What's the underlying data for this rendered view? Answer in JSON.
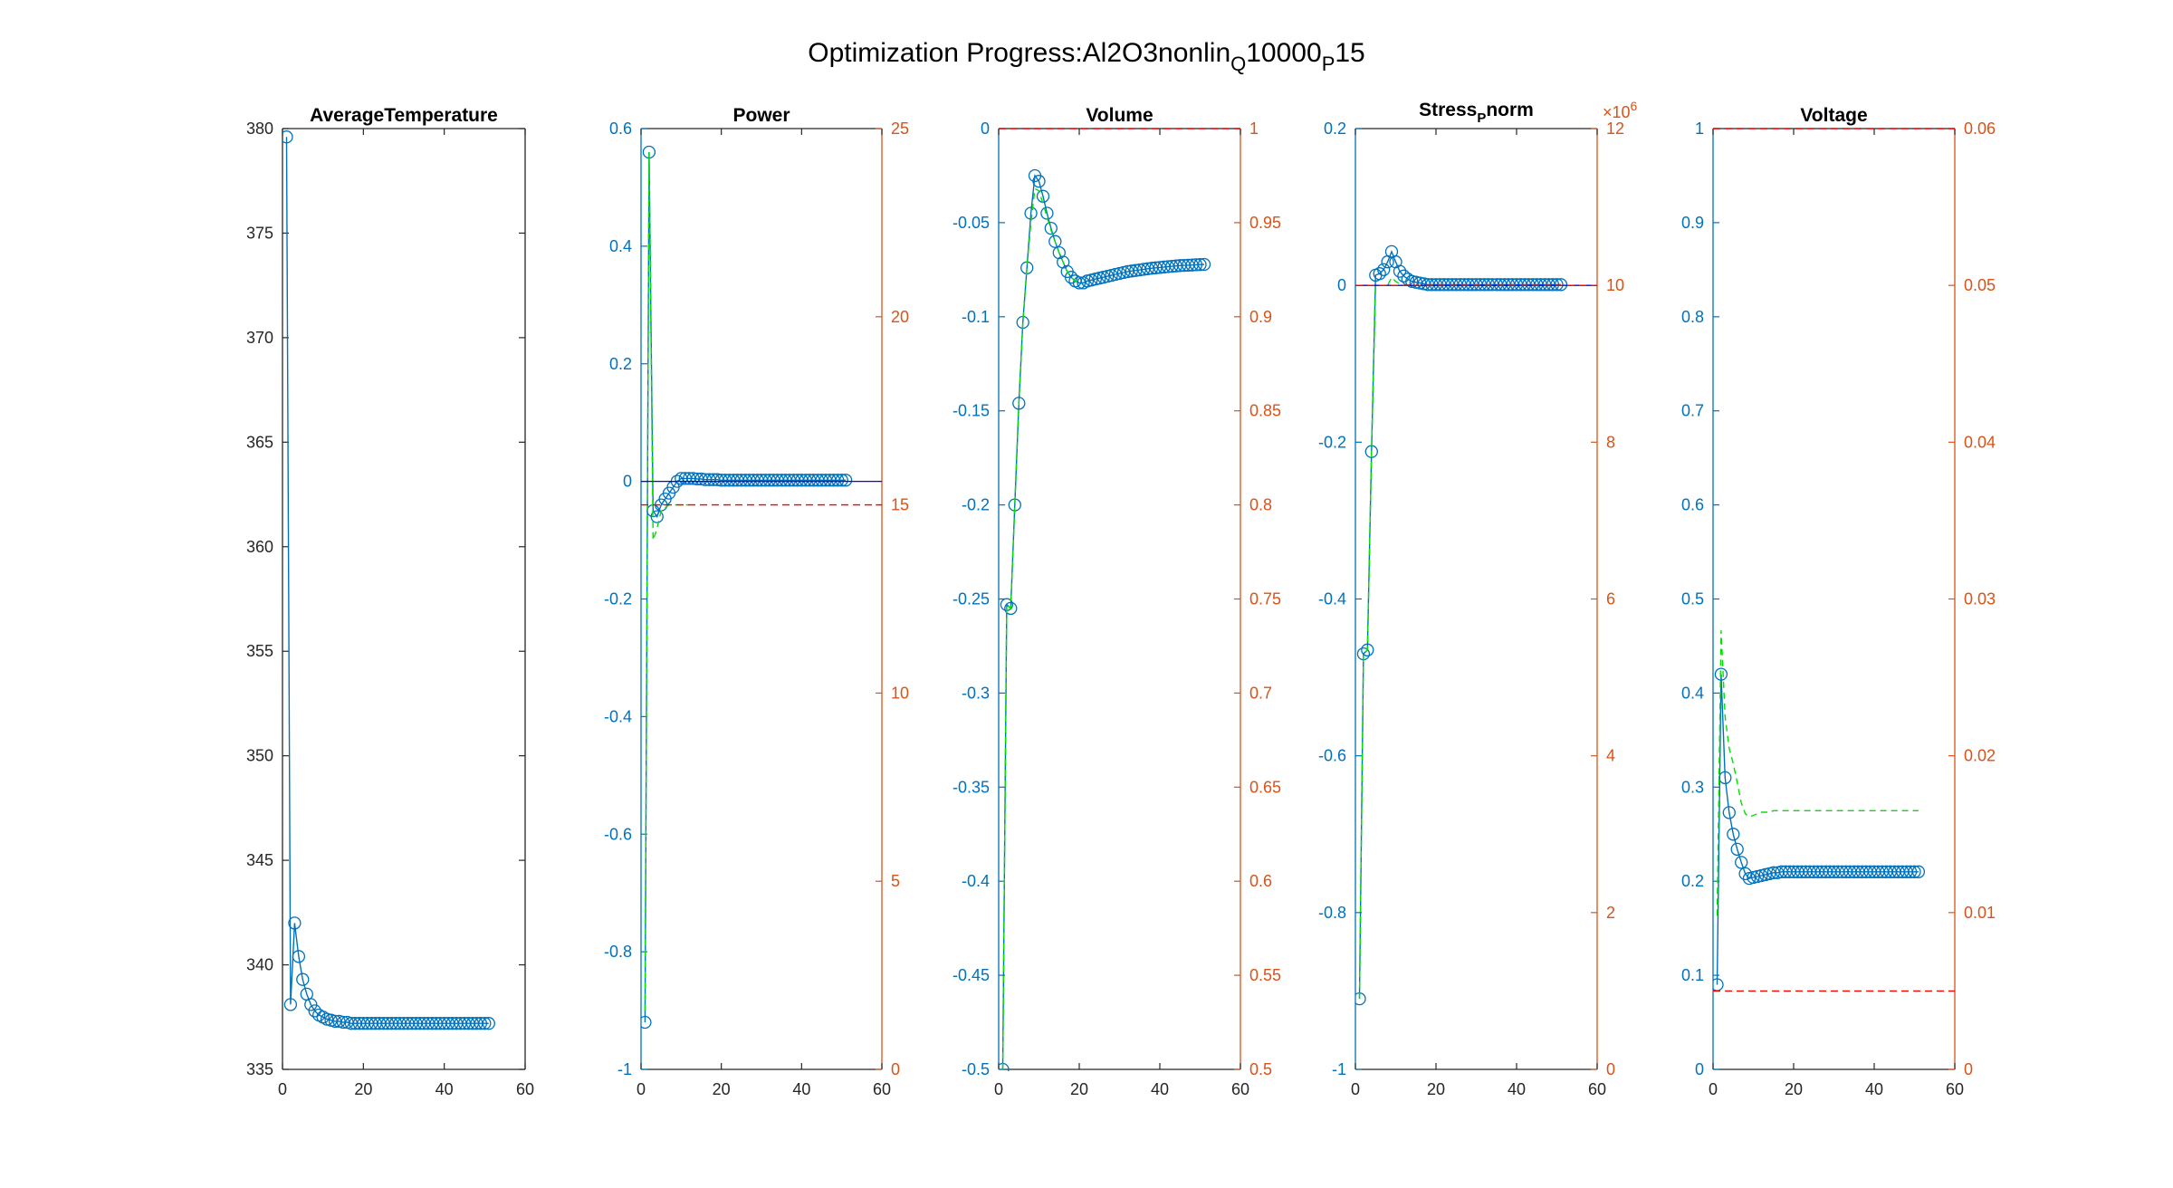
{
  "figure": {
    "title": "Optimization Progress:Al2O3nonlin",
    "title_sub1": "Q",
    "title_mid": "10000",
    "title_sub2": "P",
    "title_end": "15"
  },
  "colors": {
    "axis_left": "#0072bd",
    "axis_right": "#d95319",
    "axis_black": "#262626",
    "marker": "#0072bd",
    "green": "#00e000",
    "red": "#ff0000",
    "navy": "#0000ff"
  },
  "chart_data": [
    {
      "type": "line",
      "title": "AverageTemperature",
      "xlim": [
        0,
        60
      ],
      "xticks": [
        "0",
        "20",
        "40",
        "60"
      ],
      "ylim": [
        335,
        380
      ],
      "yticks": [
        "335",
        "340",
        "345",
        "350",
        "355",
        "360",
        "365",
        "370",
        "375",
        "380"
      ],
      "series": [
        {
          "style": "marker-line",
          "x": [
            1,
            2,
            3,
            4,
            5,
            6,
            7,
            8,
            9,
            10,
            11,
            12,
            13,
            14,
            15,
            16,
            17,
            18,
            19,
            20,
            21,
            22,
            23,
            24,
            25,
            26,
            27,
            28,
            29,
            30,
            31,
            32,
            33,
            34,
            35,
            36,
            37,
            38,
            39,
            40,
            41,
            42,
            43,
            44,
            45,
            46,
            47,
            48,
            49,
            50,
            51
          ],
          "y": [
            379.6,
            338.1,
            342.0,
            340.4,
            339.3,
            338.6,
            338.1,
            337.8,
            337.6,
            337.5,
            337.4,
            337.35,
            337.3,
            337.3,
            337.25,
            337.25,
            337.2,
            337.2,
            337.2,
            337.2,
            337.2,
            337.2,
            337.2,
            337.2,
            337.2,
            337.2,
            337.2,
            337.2,
            337.2,
            337.2,
            337.2,
            337.2,
            337.2,
            337.2,
            337.2,
            337.2,
            337.2,
            337.2,
            337.2,
            337.2,
            337.2,
            337.2,
            337.2,
            337.2,
            337.2,
            337.2,
            337.2,
            337.2,
            337.2,
            337.2,
            337.2
          ]
        }
      ]
    },
    {
      "type": "line",
      "title": "Power",
      "xlim": [
        0,
        60
      ],
      "xticks": [
        "0",
        "20",
        "40",
        "60"
      ],
      "ylim": [
        -1,
        0.6
      ],
      "yticks": [
        "-1",
        "-0.8",
        "-0.6",
        "-0.4",
        "-0.2",
        "0",
        "0.2",
        "0.4",
        "0.6"
      ],
      "ylim_right": [
        0,
        25
      ],
      "yticks_right": [
        "0",
        "5",
        "10",
        "15",
        "20",
        "25"
      ],
      "series": [
        {
          "style": "marker-line",
          "x": [
            1,
            2,
            3,
            4,
            5,
            6,
            7,
            8,
            9,
            10,
            11,
            12,
            13,
            14,
            15,
            16,
            17,
            18,
            19,
            20,
            21,
            22,
            23,
            24,
            25,
            26,
            27,
            28,
            29,
            30,
            31,
            32,
            33,
            34,
            35,
            36,
            37,
            38,
            39,
            40,
            41,
            42,
            43,
            44,
            45,
            46,
            47,
            48,
            49,
            50,
            51
          ],
          "y": [
            -0.92,
            0.56,
            -0.05,
            -0.06,
            -0.04,
            -0.03,
            -0.02,
            -0.01,
            0.0,
            0.005,
            0.005,
            0.005,
            0.005,
            0.004,
            0.004,
            0.003,
            0.003,
            0.003,
            0.003,
            0.002,
            0.002,
            0.002,
            0.002,
            0.002,
            0.002,
            0.002,
            0.002,
            0.002,
            0.002,
            0.002,
            0.002,
            0.002,
            0.002,
            0.002,
            0.002,
            0.002,
            0.002,
            0.002,
            0.002,
            0.002,
            0.002,
            0.002,
            0.002,
            0.002,
            0.002,
            0.002,
            0.002,
            0.002,
            0.002,
            0.002,
            0.002
          ]
        },
        {
          "style": "green-dash",
          "x": [
            1,
            2,
            3,
            4,
            5,
            6,
            7,
            8,
            9,
            10,
            11,
            12
          ],
          "y": [
            -0.9,
            0.56,
            -0.1,
            -0.08,
            -0.05,
            -0.045,
            -0.04,
            -0.04,
            -0.04,
            -0.04,
            -0.04,
            -0.04
          ]
        },
        {
          "style": "navy-line",
          "x": [
            0,
            60
          ],
          "y": [
            0,
            0
          ]
        },
        {
          "style": "red-dash",
          "axis": "right",
          "x": [
            0,
            60
          ],
          "y": [
            15,
            15
          ]
        }
      ]
    },
    {
      "type": "line",
      "title": "Volume",
      "xlim": [
        0,
        60
      ],
      "xticks": [
        "0",
        "20",
        "40",
        "60"
      ],
      "ylim": [
        -0.5,
        0
      ],
      "yticks": [
        "-0.5",
        "-0.45",
        "-0.4",
        "-0.35",
        "-0.3",
        "-0.25",
        "-0.2",
        "-0.15",
        "-0.1",
        "-0.05",
        "0"
      ],
      "ylim_right": [
        0.5,
        1
      ],
      "yticks_right": [
        "0.5",
        "0.55",
        "0.6",
        "0.65",
        "0.7",
        "0.75",
        "0.8",
        "0.85",
        "0.9",
        "0.95",
        "1"
      ],
      "series": [
        {
          "style": "marker-line",
          "x": [
            1,
            2,
            3,
            4,
            5,
            6,
            7,
            8,
            9,
            10,
            11,
            12,
            13,
            14,
            15,
            16,
            17,
            18,
            19,
            20,
            21,
            22,
            23,
            24,
            25,
            26,
            27,
            28,
            29,
            30,
            31,
            32,
            33,
            34,
            35,
            36,
            37,
            38,
            39,
            40,
            41,
            42,
            43,
            44,
            45,
            46,
            47,
            48,
            49,
            50,
            51
          ],
          "y": [
            -0.5,
            -0.253,
            -0.255,
            -0.2,
            -0.146,
            -0.103,
            -0.074,
            -0.045,
            -0.025,
            -0.028,
            -0.036,
            -0.045,
            -0.053,
            -0.06,
            -0.066,
            -0.071,
            -0.076,
            -0.079,
            -0.081,
            -0.082,
            -0.082,
            -0.081,
            -0.0805,
            -0.08,
            -0.0795,
            -0.079,
            -0.0785,
            -0.078,
            -0.0775,
            -0.077,
            -0.0765,
            -0.076,
            -0.0757,
            -0.0754,
            -0.0751,
            -0.0748,
            -0.0745,
            -0.0742,
            -0.074,
            -0.0738,
            -0.0736,
            -0.0734,
            -0.0732,
            -0.073,
            -0.0728,
            -0.0727,
            -0.0726,
            -0.0725,
            -0.0724,
            -0.0723,
            -0.0722
          ]
        },
        {
          "style": "green-dash",
          "x": [
            1,
            2,
            3,
            4,
            5,
            6,
            7,
            8,
            9,
            10,
            11,
            12,
            13,
            14,
            15,
            16,
            17,
            18,
            19,
            20
          ],
          "y": [
            -0.5,
            -0.253,
            -0.255,
            -0.2,
            -0.146,
            -0.103,
            -0.074,
            -0.05,
            -0.032,
            -0.033,
            -0.04,
            -0.047,
            -0.054,
            -0.06,
            -0.066,
            -0.071,
            -0.076,
            -0.079,
            -0.081,
            -0.082
          ]
        },
        {
          "style": "red-dash",
          "axis": "right",
          "x": [
            0,
            60
          ],
          "y": [
            1,
            1
          ]
        }
      ]
    },
    {
      "type": "line",
      "title": "Stress",
      "title_sub": "P",
      "title_end": "norm",
      "xlim": [
        0,
        60
      ],
      "xticks": [
        "0",
        "20",
        "40",
        "60"
      ],
      "ylim": [
        -1,
        0.2
      ],
      "yticks": [
        "-1",
        "-0.8",
        "-0.6",
        "-0.4",
        "-0.2",
        "0",
        "0.2"
      ],
      "ylim_right": [
        0,
        12
      ],
      "yticks_right": [
        "0",
        "2",
        "4",
        "6",
        "8",
        "10",
        "12"
      ],
      "exponent_base": "×10",
      "exponent_power": "6",
      "series": [
        {
          "style": "marker-line",
          "x": [
            1,
            2,
            3,
            4,
            5,
            6,
            7,
            8,
            9,
            10,
            11,
            12,
            13,
            14,
            15,
            16,
            17,
            18,
            19,
            20,
            21,
            22,
            23,
            24,
            25,
            26,
            27,
            28,
            29,
            30,
            31,
            32,
            33,
            34,
            35,
            36,
            37,
            38,
            39,
            40,
            41,
            42,
            43,
            44,
            45,
            46,
            47,
            48,
            49,
            50,
            51
          ],
          "y": [
            -0.91,
            -0.47,
            -0.465,
            -0.212,
            0.013,
            0.015,
            0.02,
            0.03,
            0.043,
            0.03,
            0.018,
            0.012,
            0.008,
            0.005,
            0.004,
            0.003,
            0.002,
            0.001,
            0.001,
            0.001,
            0.001,
            0.001,
            0.001,
            0.001,
            0.001,
            0.001,
            0.001,
            0.001,
            0.001,
            0.001,
            0.001,
            0.001,
            0.001,
            0.001,
            0.001,
            0.001,
            0.001,
            0.001,
            0.001,
            0.001,
            0.001,
            0.001,
            0.001,
            0.001,
            0.001,
            0.001,
            0.001,
            0.001,
            0.001,
            0.001,
            0.001
          ]
        },
        {
          "style": "green-dash",
          "x": [
            1,
            2,
            3,
            4,
            5,
            6,
            7,
            8,
            9,
            10,
            11,
            12,
            13,
            14,
            15
          ],
          "y": [
            -0.91,
            -0.47,
            -0.465,
            -0.212,
            0.0,
            0.0,
            0.0,
            0.0,
            0.01,
            0.005,
            0.002,
            0.0,
            0.0,
            0.0,
            0.0
          ]
        },
        {
          "style": "navy-line",
          "x": [
            0,
            60
          ],
          "y": [
            0,
            0
          ]
        },
        {
          "style": "red-dash",
          "axis": "right",
          "x": [
            0,
            60
          ],
          "y": [
            10,
            10
          ]
        }
      ]
    },
    {
      "type": "line",
      "title": "Voltage",
      "xlim": [
        0,
        60
      ],
      "xticks": [
        "0",
        "20",
        "40",
        "60"
      ],
      "ylim": [
        0,
        1
      ],
      "yticks": [
        "0",
        "0.1",
        "0.2",
        "0.3",
        "0.4",
        "0.5",
        "0.6",
        "0.7",
        "0.8",
        "0.9",
        "1"
      ],
      "ylim_right": [
        0,
        0.06
      ],
      "yticks_right": [
        "0",
        "0.01",
        "0.02",
        "0.03",
        "0.04",
        "0.05",
        "0.06"
      ],
      "series": [
        {
          "style": "marker-line",
          "x": [
            1,
            2,
            3,
            4,
            5,
            6,
            7,
            8,
            9,
            10,
            11,
            12,
            13,
            14,
            15,
            16,
            17,
            18,
            19,
            20,
            21,
            22,
            23,
            24,
            25,
            26,
            27,
            28,
            29,
            30,
            31,
            32,
            33,
            34,
            35,
            36,
            37,
            38,
            39,
            40,
            41,
            42,
            43,
            44,
            45,
            46,
            47,
            48,
            49,
            50,
            51
          ],
          "y": [
            0.09,
            0.42,
            0.31,
            0.273,
            0.25,
            0.234,
            0.22,
            0.208,
            0.203,
            0.204,
            0.205,
            0.206,
            0.207,
            0.208,
            0.209,
            0.209,
            0.21,
            0.21,
            0.21,
            0.21,
            0.21,
            0.21,
            0.21,
            0.21,
            0.21,
            0.21,
            0.21,
            0.21,
            0.21,
            0.21,
            0.21,
            0.21,
            0.21,
            0.21,
            0.21,
            0.21,
            0.21,
            0.21,
            0.21,
            0.21,
            0.21,
            0.21,
            0.21,
            0.21,
            0.21,
            0.21,
            0.21,
            0.21,
            0.21,
            0.21,
            0.21
          ]
        },
        {
          "style": "green-dash",
          "axis": "right",
          "x": [
            1,
            2,
            3,
            4,
            5,
            6,
            7,
            8,
            9,
            10,
            11,
            12,
            13,
            14,
            15,
            16,
            17,
            18,
            19,
            20,
            21,
            22,
            23,
            24,
            25,
            26,
            27,
            28,
            29,
            30,
            31,
            32,
            33,
            34,
            35,
            36,
            37,
            38,
            39,
            40,
            41,
            42,
            43,
            44,
            45,
            46,
            47,
            48,
            49,
            50,
            51
          ],
          "y": [
            0.0098,
            0.028,
            0.0225,
            0.0205,
            0.0195,
            0.0183,
            0.017,
            0.0163,
            0.0161,
            0.0162,
            0.0163,
            0.0164,
            0.0164,
            0.0164,
            0.0165,
            0.0165,
            0.0165,
            0.0165,
            0.0165,
            0.0165,
            0.0165,
            0.0165,
            0.0165,
            0.0165,
            0.0165,
            0.0165,
            0.0165,
            0.0165,
            0.0165,
            0.0165,
            0.0165,
            0.0165,
            0.0165,
            0.0165,
            0.0165,
            0.0165,
            0.0165,
            0.0165,
            0.0165,
            0.0165,
            0.0165,
            0.0165,
            0.0165,
            0.0165,
            0.0165,
            0.0165,
            0.0165,
            0.0165,
            0.0165,
            0.0165,
            0.0165
          ]
        },
        {
          "style": "red-dash",
          "axis": "right",
          "x": [
            0,
            60
          ],
          "y": [
            0.005,
            0.005
          ]
        },
        {
          "style": "red-dash",
          "axis": "right",
          "x": [
            0,
            60
          ],
          "y": [
            0.06,
            0.06
          ]
        }
      ]
    }
  ]
}
